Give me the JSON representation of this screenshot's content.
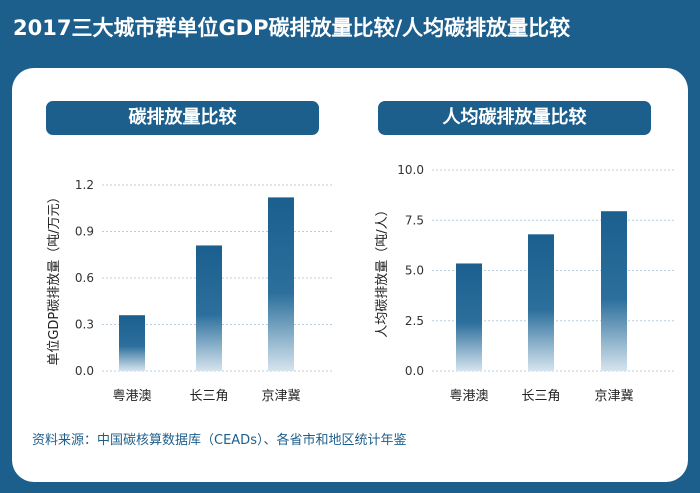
{
  "title": "2017三大城市群单位GDP碳排放量比较/人均碳排放量比较",
  "source": "资料来源：中国碳核算数据库（CEADs）、各省市和地区统计年鉴",
  "colors": {
    "background": "#1d5f8c",
    "panel": "#ffffff",
    "bar_top": "#1b5f8f",
    "bar_bottom": "#d6e4ee",
    "grid": "#b9cfe0"
  },
  "chart_data": [
    {
      "type": "bar",
      "title": "碳排放量比较",
      "ylabel": "单位GDP碳排放量（吨/万元）",
      "categories": [
        "粤港澳",
        "长三角",
        "京津冀"
      ],
      "values": [
        0.36,
        0.81,
        1.12
      ],
      "ylim": [
        0,
        1.2
      ],
      "yticks": [
        "0.0",
        "0.3",
        "0.6",
        "0.9",
        "1.2"
      ],
      "grid": true
    },
    {
      "type": "bar",
      "title": "人均碳排放量比较",
      "ylabel": "人均碳排放量（吨/人）",
      "categories": [
        "粤港澳",
        "长三角",
        "京津冀"
      ],
      "values": [
        5.35,
        6.8,
        7.95
      ],
      "ylim": [
        0,
        10
      ],
      "yticks": [
        "0.0",
        "2.5",
        "5.0",
        "7.5",
        "10.0"
      ],
      "grid": true
    }
  ]
}
